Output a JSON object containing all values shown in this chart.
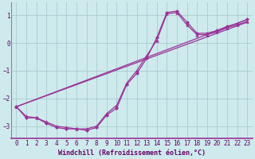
{
  "bg_color": "#ceeaec",
  "grid_color": "#aaccd0",
  "line_color": "#993399",
  "marker_color": "#993399",
  "xlabel": "Windchill (Refroidissement éolien,°C)",
  "xlabel_fontsize": 6.0,
  "tick_fontsize": 5.5,
  "xlim": [
    -0.5,
    23.5
  ],
  "ylim": [
    -3.45,
    1.45
  ],
  "yticks": [
    -3,
    -2,
    -1,
    0,
    1
  ],
  "xticks": [
    0,
    1,
    2,
    3,
    4,
    5,
    6,
    7,
    8,
    9,
    10,
    11,
    12,
    13,
    14,
    15,
    16,
    17,
    18,
    19,
    20,
    21,
    22,
    23
  ],
  "lines": [
    {
      "x": [
        0,
        1,
        2,
        3,
        4,
        5,
        6,
        7,
        8,
        9,
        10,
        11,
        12,
        13,
        14,
        15,
        16,
        17,
        18,
        19,
        20,
        21,
        22,
        23
      ],
      "y": [
        -2.3,
        -2.7,
        -2.7,
        -2.9,
        -3.05,
        -3.1,
        -3.1,
        -3.15,
        -3.05,
        -2.6,
        -2.35,
        -1.5,
        -1.1,
        -0.55,
        0.2,
        1.1,
        1.15,
        0.75,
        0.35,
        0.35,
        0.45,
        0.6,
        0.7,
        0.85
      ],
      "marker": "D",
      "markersize": 2.0,
      "linewidth": 0.9
    },
    {
      "x": [
        0,
        1,
        2,
        3,
        4,
        5,
        6,
        7,
        8,
        9,
        10,
        11,
        12,
        13,
        14,
        15,
        16,
        17,
        18,
        19,
        20,
        21,
        22,
        23
      ],
      "y": [
        -2.3,
        -2.65,
        -2.7,
        -2.85,
        -3.0,
        -3.05,
        -3.1,
        -3.1,
        -3.0,
        -2.55,
        -2.25,
        -1.45,
        -1.0,
        -0.45,
        0.1,
        1.05,
        1.1,
        0.65,
        0.3,
        0.3,
        0.4,
        0.55,
        0.65,
        0.78
      ],
      "marker": "^",
      "markersize": 2.5,
      "linewidth": 0.9
    },
    {
      "x": [
        0,
        23
      ],
      "y": [
        -2.3,
        0.85
      ],
      "marker": null,
      "markersize": 0,
      "linewidth": 0.9
    },
    {
      "x": [
        0,
        23
      ],
      "y": [
        -2.3,
        0.75
      ],
      "marker": null,
      "markersize": 0,
      "linewidth": 0.9
    }
  ]
}
